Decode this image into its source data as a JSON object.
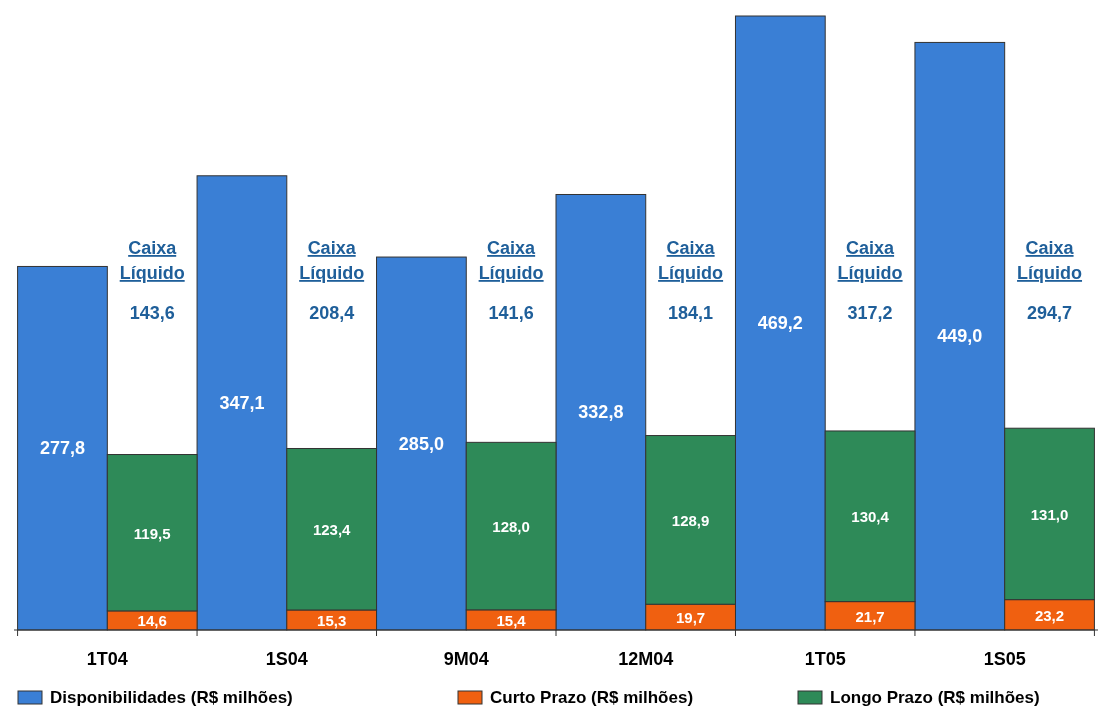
{
  "chart_data": {
    "type": "bar",
    "stacked": true,
    "categories": [
      "1T04",
      null,
      "1S04",
      null,
      "9M04",
      null,
      "12M04",
      null,
      "1T05",
      null,
      "1S05",
      null
    ],
    "series": [
      {
        "name": "Disponibilidades (R$ milhões)",
        "color": "#3a7fd5",
        "values": [
          277.8,
          null,
          347.1,
          null,
          285.0,
          null,
          332.8,
          null,
          469.2,
          null,
          449.0,
          null
        ],
        "value_labels": [
          "277,8",
          null,
          "347,1",
          null,
          "285,0",
          null,
          "332,8",
          null,
          "469,2",
          null,
          "449,0",
          null
        ]
      },
      {
        "name": "Curto Prazo (R$ milhões)",
        "color": "#f06010",
        "values": [
          null,
          14.6,
          null,
          15.3,
          null,
          15.4,
          null,
          19.7,
          null,
          21.7,
          null,
          23.2
        ],
        "value_labels": [
          null,
          "14,6",
          null,
          "15,3",
          null,
          "15,4",
          null,
          "19,7",
          null,
          "21,7",
          null,
          "23,2"
        ]
      },
      {
        "name": "Longo Prazo (R$ milhões)",
        "color": "#2e8a58",
        "values": [
          null,
          119.5,
          null,
          123.4,
          null,
          128.0,
          null,
          128.9,
          null,
          130.4,
          null,
          131.0
        ],
        "value_labels": [
          null,
          "119,5",
          null,
          "123,4",
          null,
          "128,0",
          null,
          "128,9",
          null,
          "130,4",
          null,
          "131,0"
        ]
      }
    ],
    "annotations": [
      "Caixa Líquido",
      "143,6",
      "Caixa Líquido",
      "208,4",
      "Caixa Líquido",
      "141,6",
      "Caixa Líquido",
      "184,1",
      "Caixa Líquido",
      "317,2",
      "Caixa Líquido",
      "294,7"
    ],
    "legend": "bottom"
  }
}
